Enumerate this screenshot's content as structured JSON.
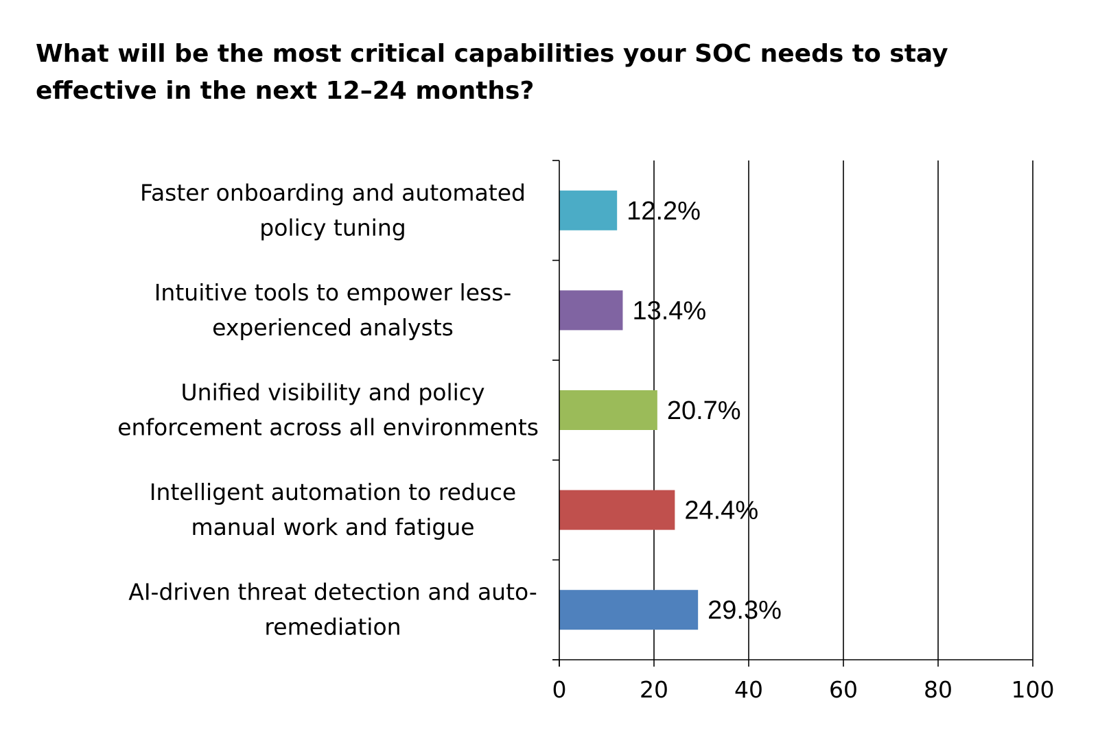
{
  "chart_data": {
    "type": "bar",
    "orientation": "horizontal",
    "title": "What will be the most critical capabilities your SOC needs to stay effective in the next 12–24 months?",
    "categories": [
      [
        "Faster onboarding and automated",
        "policy tuning"
      ],
      [
        "Intuitive tools to empower less-",
        "experienced analysts"
      ],
      [
        "Unified visibility and policy",
        "enforcement across all environments"
      ],
      [
        "Intelligent automation to reduce",
        "manual work and fatigue"
      ],
      [
        "AI-driven threat detection and auto-",
        "remediation"
      ]
    ],
    "values": [
      12.2,
      13.4,
      20.7,
      24.4,
      29.3
    ],
    "value_labels": [
      "12.2%",
      "13.4%",
      "20.7%",
      "24.4%",
      "29.3%"
    ],
    "colors": [
      "#4bacc6",
      "#8064a2",
      "#9bbb59",
      "#c0504d",
      "#4f81bd"
    ],
    "xlim": [
      0,
      100
    ],
    "xticks": [
      0,
      20,
      40,
      60,
      80,
      100
    ],
    "xtick_labels": [
      "0",
      "20",
      "40",
      "60",
      "80",
      "100"
    ],
    "xlabel": "",
    "ylabel": "",
    "grid": true,
    "legend": "none"
  }
}
